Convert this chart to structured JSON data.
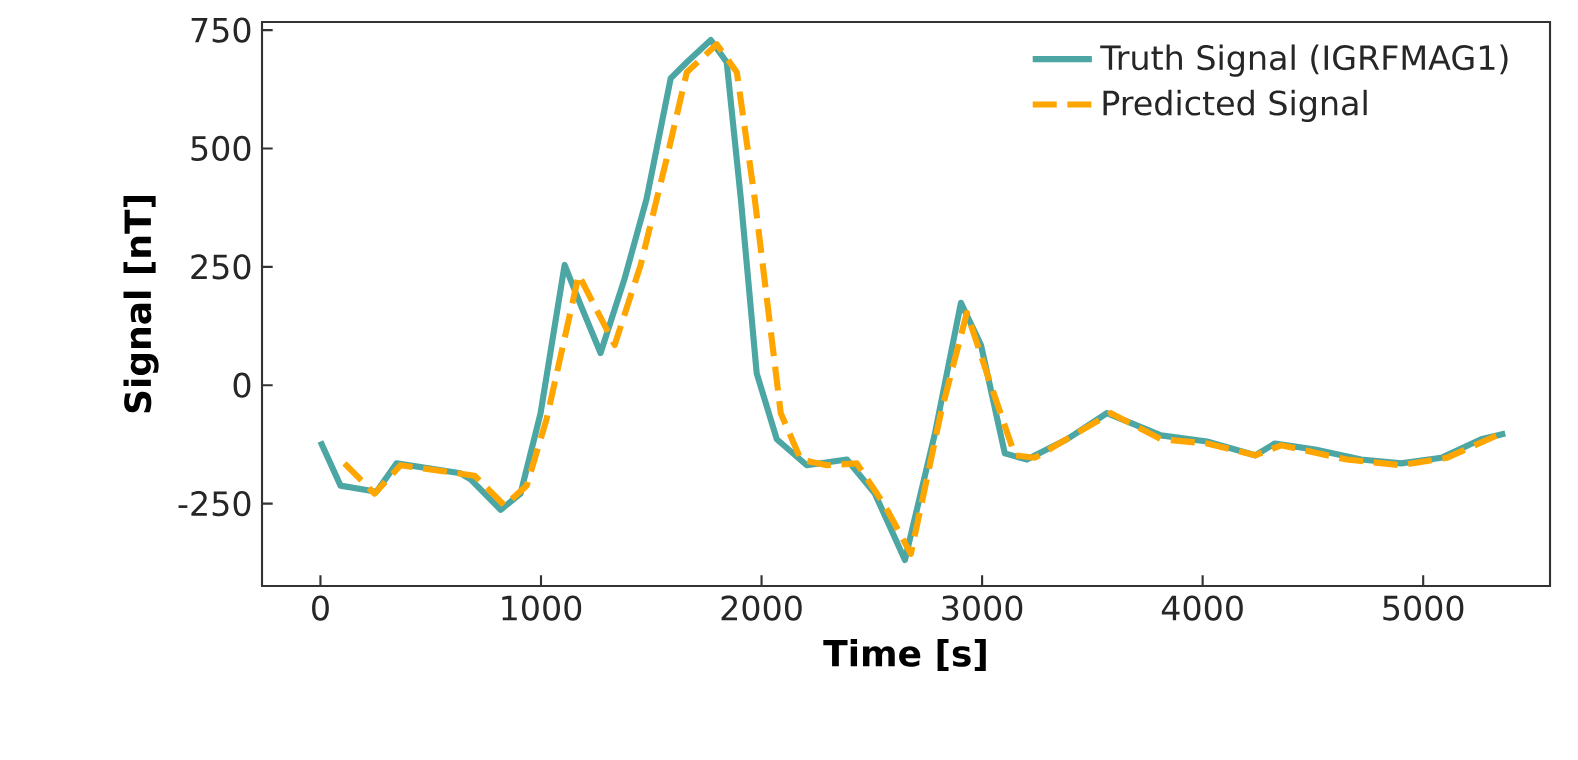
{
  "chart_data": {
    "type": "line",
    "xlabel": "Time [s]",
    "ylabel": "Signal [nT]",
    "xlim": [
      -265,
      5575
    ],
    "ylim": [
      -424,
      767
    ],
    "xticks": [
      0,
      1000,
      2000,
      3000,
      4000,
      5000
    ],
    "yticks": [
      -250,
      0,
      250,
      500,
      750
    ],
    "grid": false,
    "legend": "top right",
    "marker": "none",
    "series": [
      {
        "name": "Truth Signal (IGRFMAG1)",
        "color": "#4ca6a3",
        "line_style": "solid",
        "x": [
          0,
          91,
          254,
          345,
          635,
          681,
          817,
          907,
          998,
          1107,
          1180,
          1270,
          1379,
          1479,
          1588,
          1661,
          1770,
          1842,
          1906,
          1978,
          2069,
          2205,
          2387,
          2514,
          2650,
          2786,
          2904,
          2995,
          3103,
          3203,
          3385,
          3566,
          3811,
          4020,
          4238,
          4328,
          4510,
          4719,
          4900,
          5082,
          5263,
          5372
        ],
        "values": [
          -119,
          -212,
          -225,
          -165,
          -186,
          -199,
          -263,
          -229,
          -59,
          254,
          169,
          68,
          225,
          394,
          648,
          682,
          729,
          682,
          394,
          25,
          -114,
          -169,
          -157,
          -229,
          -369,
          -102,
          174,
          85,
          -144,
          -157,
          -114,
          -59,
          -106,
          -119,
          -148,
          -123,
          -136,
          -157,
          -165,
          -153,
          -114,
          -102
        ]
      },
      {
        "name": "Predicted Signal",
        "color": "#ffa500",
        "line_style": "dashed",
        "x": [
          109,
          245,
          363,
          699,
          835,
          935,
          1025,
          1171,
          1334,
          1452,
          1570,
          1661,
          1797,
          1888,
          1969,
          2087,
          2178,
          2296,
          2432,
          2559,
          2677,
          2813,
          2931,
          3040,
          3149,
          3240,
          3584,
          3811,
          4020,
          4238,
          4356,
          4655,
          4900,
          5109,
          5354
        ],
        "values": [
          -165,
          -229,
          -169,
          -191,
          -254,
          -212,
          -72,
          233,
          85,
          254,
          479,
          661,
          720,
          661,
          394,
          -59,
          -157,
          -169,
          -165,
          -254,
          -356,
          -59,
          153,
          0,
          -148,
          -153,
          -59,
          -114,
          -123,
          -148,
          -127,
          -157,
          -169,
          -153,
          -102
        ]
      }
    ]
  }
}
